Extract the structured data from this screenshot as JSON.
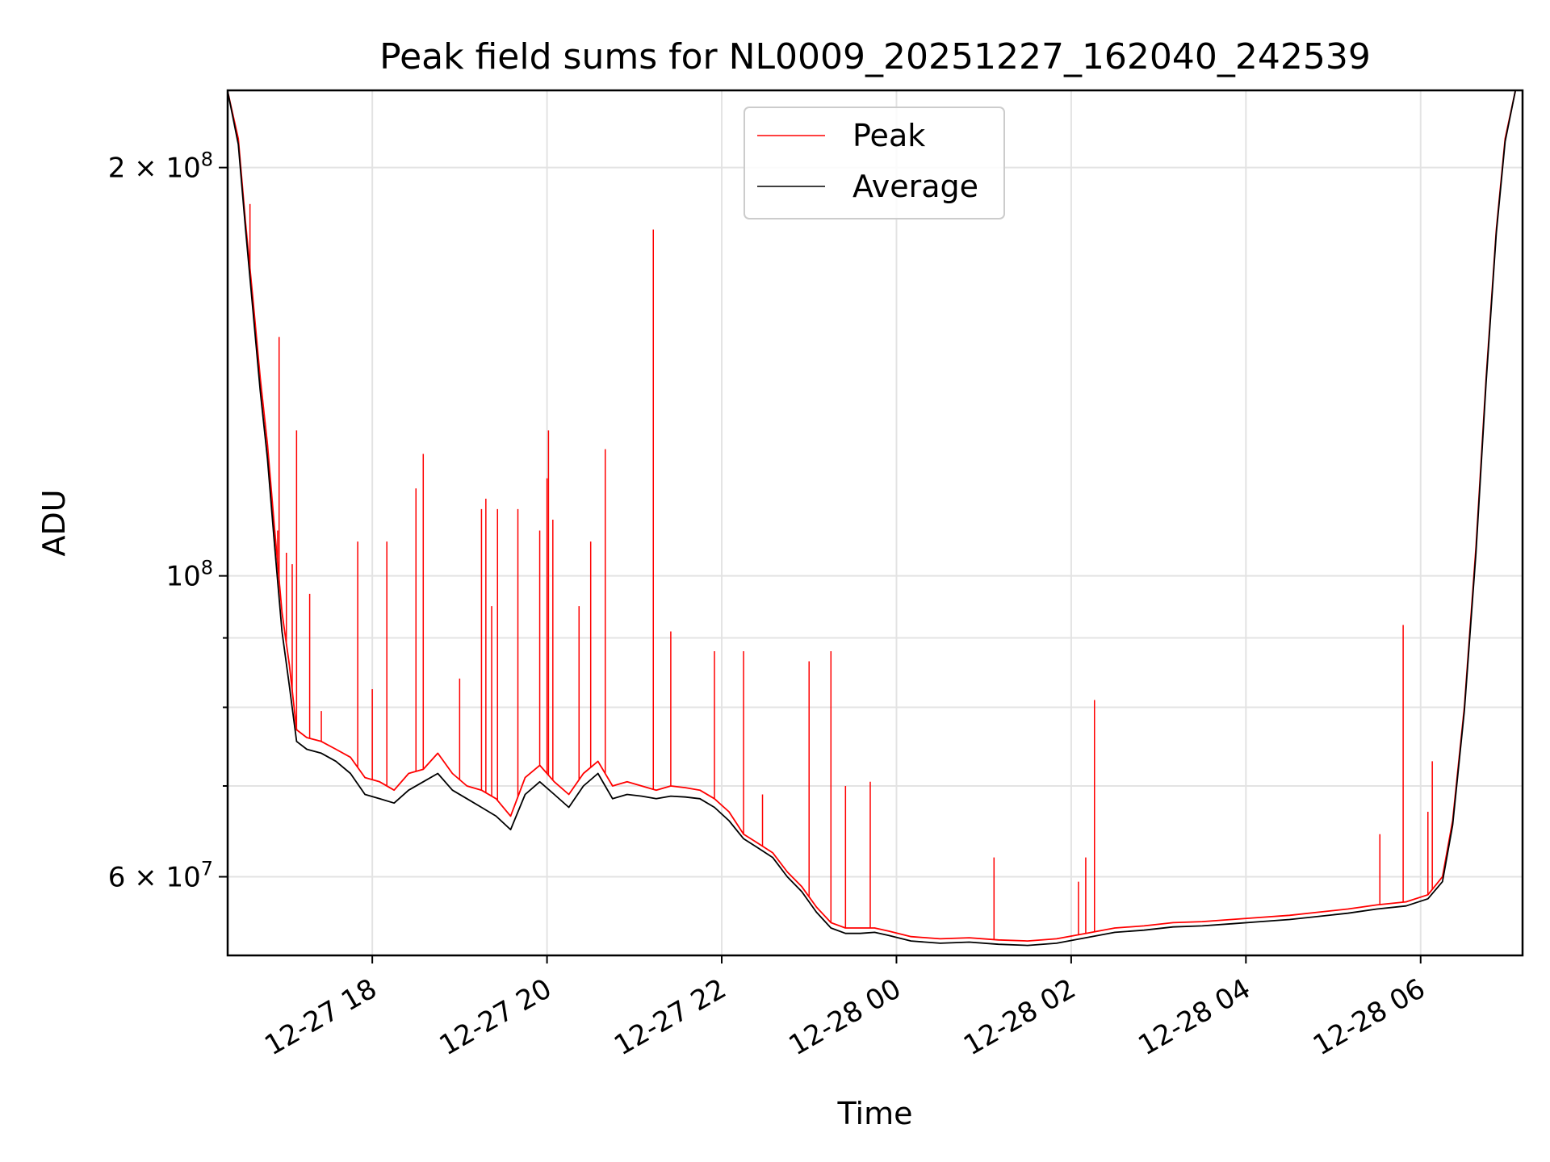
{
  "chart_data": {
    "type": "line",
    "title": "Peak field sums for NL0009_20251227_162040_242539",
    "xlabel": "Time",
    "ylabel": "ADU",
    "x_axis_type": "datetime",
    "xlim": [
      "2025-12-27T16:20:40",
      "2025-12-28T07:10:00"
    ],
    "ylim": [
      52500000,
      228000000
    ],
    "y_scale": "log",
    "grid": true,
    "legend_position": "top-center",
    "x_tick_labels": [
      {
        "t": "2025-12-27T18:00:00",
        "label": "12-27 18"
      },
      {
        "t": "2025-12-27T20:00:00",
        "label": "12-27 20"
      },
      {
        "t": "2025-12-27T22:00:00",
        "label": "12-27 22"
      },
      {
        "t": "2025-12-28T00:00:00",
        "label": "12-28 00"
      },
      {
        "t": "2025-12-28T02:00:00",
        "label": "12-28 02"
      },
      {
        "t": "2025-12-28T04:00:00",
        "label": "12-28 04"
      },
      {
        "t": "2025-12-28T06:00:00",
        "label": "12-28 06"
      }
    ],
    "y_tick_labels": [
      {
        "value": 60000000,
        "base": "6 × 10",
        "exp": "7"
      },
      {
        "value": 100000000,
        "base": "10",
        "exp": "8"
      },
      {
        "value": 200000000,
        "base": "2 × 10",
        "exp": "8"
      }
    ],
    "y_minor_ticks": [
      70000000,
      80000000,
      90000000
    ],
    "series": [
      {
        "name": "Peak",
        "color": "#ff0000",
        "points": [
          [
            "2025-12-27T16:20:40",
            228000000
          ],
          [
            "2025-12-27T16:28:00",
            210000000
          ],
          [
            "2025-12-27T16:33:00",
            182000000
          ],
          [
            "2025-12-27T16:38:00",
            160000000
          ],
          [
            "2025-12-27T16:43:00",
            140000000
          ],
          [
            "2025-12-27T16:48:00",
            125000000
          ],
          [
            "2025-12-27T16:53:00",
            108000000
          ],
          [
            "2025-12-27T16:58:00",
            94000000
          ],
          [
            "2025-12-27T17:03:00",
            86000000
          ],
          [
            "2025-12-27T17:08:00",
            77000000
          ],
          [
            "2025-12-27T17:15:00",
            76000000
          ],
          [
            "2025-12-27T17:25:00",
            75500000
          ],
          [
            "2025-12-27T17:35:00",
            74500000
          ],
          [
            "2025-12-27T17:45:00",
            73500000
          ],
          [
            "2025-12-27T17:55:00",
            71000000
          ],
          [
            "2025-12-27T18:05:00",
            70500000
          ],
          [
            "2025-12-27T18:15:00",
            69500000
          ],
          [
            "2025-12-27T18:25:00",
            71500000
          ],
          [
            "2025-12-27T18:35:00",
            72000000
          ],
          [
            "2025-12-27T18:45:00",
            74000000
          ],
          [
            "2025-12-27T18:55:00",
            71500000
          ],
          [
            "2025-12-27T19:05:00",
            70000000
          ],
          [
            "2025-12-27T19:15:00",
            69500000
          ],
          [
            "2025-12-27T19:25:00",
            68500000
          ],
          [
            "2025-12-27T19:35:00",
            66500000
          ],
          [
            "2025-12-27T19:45:00",
            71000000
          ],
          [
            "2025-12-27T19:55:00",
            72500000
          ],
          [
            "2025-12-27T20:05:00",
            70500000
          ],
          [
            "2025-12-27T20:15:00",
            69000000
          ],
          [
            "2025-12-27T20:25:00",
            71500000
          ],
          [
            "2025-12-27T20:35:00",
            73000000
          ],
          [
            "2025-12-27T20:45:00",
            70000000
          ],
          [
            "2025-12-27T20:55:00",
            70500000
          ],
          [
            "2025-12-27T21:05:00",
            70000000
          ],
          [
            "2025-12-27T21:15:00",
            69500000
          ],
          [
            "2025-12-27T21:25:00",
            70000000
          ],
          [
            "2025-12-27T21:35:00",
            69800000
          ],
          [
            "2025-12-27T21:45:00",
            69500000
          ],
          [
            "2025-12-27T21:55:00",
            68500000
          ],
          [
            "2025-12-27T22:05:00",
            67000000
          ],
          [
            "2025-12-27T22:15:00",
            64500000
          ],
          [
            "2025-12-27T22:25:00",
            63500000
          ],
          [
            "2025-12-27T22:35:00",
            62500000
          ],
          [
            "2025-12-27T22:45:00",
            60500000
          ],
          [
            "2025-12-27T22:55:00",
            59000000
          ],
          [
            "2025-12-27T23:05:00",
            57000000
          ],
          [
            "2025-12-27T23:15:00",
            55500000
          ],
          [
            "2025-12-27T23:25:00",
            55000000
          ],
          [
            "2025-12-27T23:35:00",
            55000000
          ],
          [
            "2025-12-27T23:45:00",
            55000000
          ],
          [
            "2025-12-27T23:55:00",
            54700000
          ],
          [
            "2025-12-28T00:10:00",
            54200000
          ],
          [
            "2025-12-28T00:30:00",
            54000000
          ],
          [
            "2025-12-28T00:50:00",
            54100000
          ],
          [
            "2025-12-28T01:10:00",
            53900000
          ],
          [
            "2025-12-28T01:30:00",
            53800000
          ],
          [
            "2025-12-28T01:50:00",
            54000000
          ],
          [
            "2025-12-28T02:10:00",
            54500000
          ],
          [
            "2025-12-28T02:30:00",
            55000000
          ],
          [
            "2025-12-28T02:50:00",
            55200000
          ],
          [
            "2025-12-28T03:10:00",
            55500000
          ],
          [
            "2025-12-28T03:30:00",
            55600000
          ],
          [
            "2025-12-28T03:50:00",
            55800000
          ],
          [
            "2025-12-28T04:10:00",
            56000000
          ],
          [
            "2025-12-28T04:30:00",
            56200000
          ],
          [
            "2025-12-28T04:50:00",
            56500000
          ],
          [
            "2025-12-28T05:10:00",
            56800000
          ],
          [
            "2025-12-28T05:30:00",
            57200000
          ],
          [
            "2025-12-28T05:50:00",
            57500000
          ],
          [
            "2025-12-28T06:05:00",
            58200000
          ],
          [
            "2025-12-28T06:15:00",
            60000000
          ],
          [
            "2025-12-28T06:22:00",
            66000000
          ],
          [
            "2025-12-28T06:30:00",
            80000000
          ],
          [
            "2025-12-28T06:38:00",
            105000000
          ],
          [
            "2025-12-28T06:45:00",
            140000000
          ],
          [
            "2025-12-28T06:52:00",
            180000000
          ],
          [
            "2025-12-28T06:58:00",
            210000000
          ],
          [
            "2025-12-28T07:05:00",
            228000000
          ]
        ],
        "spikes": [
          [
            "2025-12-27T16:36:00",
            188000000
          ],
          [
            "2025-12-27T16:55:00",
            108000000
          ],
          [
            "2025-12-27T16:56:00",
            150000000
          ],
          [
            "2025-12-27T17:01:00",
            104000000
          ],
          [
            "2025-12-27T17:05:00",
            102000000
          ],
          [
            "2025-12-27T17:08:00",
            128000000
          ],
          [
            "2025-12-27T17:17:00",
            97000000
          ],
          [
            "2025-12-27T17:25:00",
            79500000
          ],
          [
            "2025-12-27T17:50:00",
            106000000
          ],
          [
            "2025-12-27T18:00:00",
            82500000
          ],
          [
            "2025-12-27T18:10:00",
            106000000
          ],
          [
            "2025-12-27T18:30:00",
            116000000
          ],
          [
            "2025-12-27T18:35:00",
            123000000
          ],
          [
            "2025-12-27T19:00:00",
            84000000
          ],
          [
            "2025-12-27T19:15:00",
            112000000
          ],
          [
            "2025-12-27T19:18:00",
            114000000
          ],
          [
            "2025-12-27T19:22:00",
            95000000
          ],
          [
            "2025-12-27T19:26:00",
            112000000
          ],
          [
            "2025-12-27T19:40:00",
            112000000
          ],
          [
            "2025-12-27T19:55:00",
            108000000
          ],
          [
            "2025-12-27T20:00:00",
            118000000
          ],
          [
            "2025-12-27T20:01:00",
            128000000
          ],
          [
            "2025-12-27T20:04:00",
            110000000
          ],
          [
            "2025-12-27T20:22:00",
            95000000
          ],
          [
            "2025-12-27T20:30:00",
            106000000
          ],
          [
            "2025-12-27T20:40:00",
            124000000
          ],
          [
            "2025-12-27T21:13:00",
            180000000
          ],
          [
            "2025-12-27T21:25:00",
            91000000
          ],
          [
            "2025-12-27T21:55:00",
            88000000
          ],
          [
            "2025-12-27T22:15:00",
            88000000
          ],
          [
            "2025-12-27T22:28:00",
            69000000
          ],
          [
            "2025-12-27T23:00:00",
            86500000
          ],
          [
            "2025-12-27T23:15:00",
            88000000
          ],
          [
            "2025-12-27T23:25:00",
            70000000
          ],
          [
            "2025-12-27T23:42:00",
            70500000
          ],
          [
            "2025-12-28T01:07:00",
            62000000
          ],
          [
            "2025-12-28T02:05:00",
            59500000
          ],
          [
            "2025-12-28T02:10:00",
            62000000
          ],
          [
            "2025-12-28T02:16:00",
            81000000
          ],
          [
            "2025-12-28T05:32:00",
            64500000
          ],
          [
            "2025-12-28T05:48:00",
            92000000
          ],
          [
            "2025-12-28T06:05:00",
            67000000
          ],
          [
            "2025-12-28T06:08:00",
            73000000
          ]
        ]
      },
      {
        "name": "Average",
        "color": "#000000",
        "points": [
          [
            "2025-12-27T16:20:40",
            228000000
          ],
          [
            "2025-12-27T16:28:00",
            208000000
          ],
          [
            "2025-12-27T16:33:00",
            180000000
          ],
          [
            "2025-12-27T16:38:00",
            157000000
          ],
          [
            "2025-12-27T16:43:00",
            137000000
          ],
          [
            "2025-12-27T16:48:00",
            122000000
          ],
          [
            "2025-12-27T16:53:00",
            105000000
          ],
          [
            "2025-12-27T16:58:00",
            91000000
          ],
          [
            "2025-12-27T17:03:00",
            83000000
          ],
          [
            "2025-12-27T17:08:00",
            75500000
          ],
          [
            "2025-12-27T17:15:00",
            74500000
          ],
          [
            "2025-12-27T17:25:00",
            74000000
          ],
          [
            "2025-12-27T17:35:00",
            73000000
          ],
          [
            "2025-12-27T17:45:00",
            71500000
          ],
          [
            "2025-12-27T17:55:00",
            69000000
          ],
          [
            "2025-12-27T18:05:00",
            68500000
          ],
          [
            "2025-12-27T18:15:00",
            68000000
          ],
          [
            "2025-12-27T18:25:00",
            69500000
          ],
          [
            "2025-12-27T18:35:00",
            70500000
          ],
          [
            "2025-12-27T18:45:00",
            71500000
          ],
          [
            "2025-12-27T18:55:00",
            69500000
          ],
          [
            "2025-12-27T19:05:00",
            68500000
          ],
          [
            "2025-12-27T19:15:00",
            67500000
          ],
          [
            "2025-12-27T19:25:00",
            66500000
          ],
          [
            "2025-12-27T19:35:00",
            65000000
          ],
          [
            "2025-12-27T19:45:00",
            69000000
          ],
          [
            "2025-12-27T19:55:00",
            70500000
          ],
          [
            "2025-12-27T20:05:00",
            69000000
          ],
          [
            "2025-12-27T20:15:00",
            67500000
          ],
          [
            "2025-12-27T20:25:00",
            70000000
          ],
          [
            "2025-12-27T20:35:00",
            71500000
          ],
          [
            "2025-12-27T20:45:00",
            68500000
          ],
          [
            "2025-12-27T20:55:00",
            69000000
          ],
          [
            "2025-12-27T21:05:00",
            68800000
          ],
          [
            "2025-12-27T21:15:00",
            68500000
          ],
          [
            "2025-12-27T21:25:00",
            68800000
          ],
          [
            "2025-12-27T21:35:00",
            68700000
          ],
          [
            "2025-12-27T21:45:00",
            68500000
          ],
          [
            "2025-12-27T21:55:00",
            67500000
          ],
          [
            "2025-12-27T22:05:00",
            66000000
          ],
          [
            "2025-12-27T22:15:00",
            64000000
          ],
          [
            "2025-12-27T22:25:00",
            63000000
          ],
          [
            "2025-12-27T22:35:00",
            62000000
          ],
          [
            "2025-12-27T22:45:00",
            60000000
          ],
          [
            "2025-12-27T22:55:00",
            58500000
          ],
          [
            "2025-12-27T23:05:00",
            56500000
          ],
          [
            "2025-12-27T23:15:00",
            55000000
          ],
          [
            "2025-12-27T23:25:00",
            54500000
          ],
          [
            "2025-12-27T23:35:00",
            54500000
          ],
          [
            "2025-12-27T23:45:00",
            54600000
          ],
          [
            "2025-12-27T23:55:00",
            54300000
          ],
          [
            "2025-12-28T00:10:00",
            53800000
          ],
          [
            "2025-12-28T00:30:00",
            53600000
          ],
          [
            "2025-12-28T00:50:00",
            53700000
          ],
          [
            "2025-12-28T01:10:00",
            53500000
          ],
          [
            "2025-12-28T01:30:00",
            53400000
          ],
          [
            "2025-12-28T01:50:00",
            53600000
          ],
          [
            "2025-12-28T02:10:00",
            54100000
          ],
          [
            "2025-12-28T02:30:00",
            54600000
          ],
          [
            "2025-12-28T02:50:00",
            54800000
          ],
          [
            "2025-12-28T03:10:00",
            55100000
          ],
          [
            "2025-12-28T03:30:00",
            55200000
          ],
          [
            "2025-12-28T03:50:00",
            55400000
          ],
          [
            "2025-12-28T04:10:00",
            55600000
          ],
          [
            "2025-12-28T04:30:00",
            55800000
          ],
          [
            "2025-12-28T04:50:00",
            56100000
          ],
          [
            "2025-12-28T05:10:00",
            56400000
          ],
          [
            "2025-12-28T05:30:00",
            56800000
          ],
          [
            "2025-12-28T05:50:00",
            57100000
          ],
          [
            "2025-12-28T06:05:00",
            57800000
          ],
          [
            "2025-12-28T06:15:00",
            59500000
          ],
          [
            "2025-12-28T06:22:00",
            65500000
          ],
          [
            "2025-12-28T06:30:00",
            79500000
          ],
          [
            "2025-12-28T06:38:00",
            104000000
          ],
          [
            "2025-12-28T06:45:00",
            139000000
          ],
          [
            "2025-12-28T06:52:00",
            179000000
          ],
          [
            "2025-12-28T06:58:00",
            209000000
          ],
          [
            "2025-12-28T07:05:00",
            228000000
          ]
        ]
      }
    ]
  }
}
